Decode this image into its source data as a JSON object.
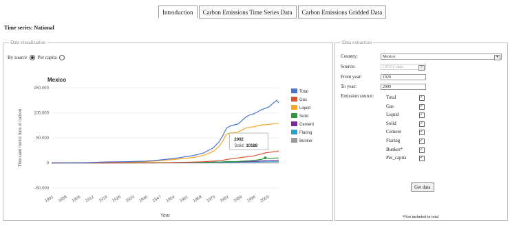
{
  "tabs": [
    {
      "label": "Introduction"
    },
    {
      "label": "Carbon Emissions Time Series Data"
    },
    {
      "label": "Carbon Emissions Gridded Data"
    }
  ],
  "page_title": "Time series: National",
  "viz": {
    "legend": "Data visualization",
    "opt_source": "By source",
    "opt_percapita": "Per capita",
    "tooltip": {
      "year": "2002",
      "label": "Solid:",
      "value": "10188"
    }
  },
  "extraction": {
    "legend": "Data extraction",
    "country_label": "Country:",
    "country_value": "Mexico",
    "source_label": "Source:",
    "source_value": "CDIAC data",
    "from_label": "From year:",
    "from_value": "1929",
    "to_label": "To year:",
    "to_value": "2009",
    "emission_label": "Emission source:",
    "sources": [
      "Total",
      "Gas",
      "Liquid",
      "Solid",
      "Cement",
      "Flaring",
      "Bunker*",
      "Per_capita"
    ],
    "get_data": "Get data",
    "footnote": "*Not included in total"
  },
  "chart_data": {
    "type": "line",
    "title": "Mexico",
    "xlabel": "Year",
    "ylabel": "Thousand metric tons of carbon",
    "xlim": [
      1891,
      2009
    ],
    "ylim": [
      -50000,
      150000
    ],
    "yticks": [
      "150,000",
      "100,000",
      "50,000",
      "0",
      "-50,000"
    ],
    "xticks": [
      "1891",
      "1898",
      "1905",
      "1912",
      "1919",
      "1926",
      "1933",
      "1940",
      "1947",
      "1954",
      "1961",
      "1968",
      "1975",
      "1982",
      "1989",
      "1996",
      "2003"
    ],
    "x": [
      1891,
      1900,
      1910,
      1920,
      1930,
      1940,
      1945,
      1950,
      1955,
      1960,
      1965,
      1970,
      1975,
      1978,
      1980,
      1981,
      1982,
      1984,
      1986,
      1988,
      1990,
      1992,
      1994,
      1996,
      1998,
      2000,
      2002,
      2004,
      2006,
      2008,
      2009
    ],
    "series": [
      {
        "name": "Total",
        "color": "#4a74d0",
        "values": [
          0,
          200,
          700,
          2000,
          2500,
          3500,
          5000,
          7000,
          9000,
          12000,
          15000,
          20000,
          30000,
          42000,
          55000,
          63000,
          70000,
          74000,
          76000,
          78000,
          85000,
          92000,
          96000,
          98000,
          102000,
          106000,
          109000,
          112000,
          119000,
          125000,
          120000
        ]
      },
      {
        "name": "Gas",
        "color": "#d9542c",
        "values": [
          0,
          0,
          0,
          0,
          0,
          0,
          100,
          300,
          700,
          1200,
          1800,
          2500,
          3500,
          4500,
          5500,
          6000,
          7000,
          8000,
          9000,
          10000,
          11000,
          12000,
          13000,
          14000,
          16000,
          18000,
          20000,
          21000,
          22000,
          23000,
          24000
        ]
      },
      {
        "name": "Liquid",
        "color": "#f5a623",
        "values": [
          0,
          100,
          500,
          1600,
          2000,
          2800,
          4000,
          5500,
          7000,
          9000,
          11000,
          15000,
          23000,
          33000,
          44000,
          52000,
          58000,
          60000,
          61000,
          62000,
          66000,
          70000,
          71000,
          72000,
          74000,
          76000,
          76000,
          77000,
          78000,
          79000,
          78000
        ]
      },
      {
        "name": "Solid",
        "color": "#2a9a3c",
        "values": [
          0,
          100,
          200,
          300,
          300,
          400,
          500,
          600,
          700,
          800,
          900,
          1000,
          1500,
          1800,
          2000,
          2200,
          2400,
          2600,
          2800,
          3000,
          3500,
          4000,
          4500,
          5000,
          6000,
          7000,
          10188,
          9000,
          9500,
          10000,
          9500
        ]
      },
      {
        "name": "Cement",
        "color": "#7a2a9a",
        "values": [
          0,
          0,
          0,
          50,
          100,
          150,
          200,
          300,
          400,
          600,
          800,
          1000,
          1500,
          1800,
          2000,
          2100,
          2200,
          2300,
          2400,
          2500,
          2700,
          2900,
          3100,
          3300,
          3600,
          3900,
          4200,
          4500,
          4800,
          5100,
          5200
        ]
      },
      {
        "name": "Flaring",
        "color": "#2aa0c8",
        "values": [
          0,
          0,
          0,
          0,
          0,
          0,
          0,
          100,
          200,
          300,
          400,
          500,
          700,
          900,
          1000,
          1100,
          1200,
          1300,
          1400,
          1500,
          1600,
          1700,
          1800,
          1900,
          2000,
          2100,
          2200,
          2300,
          2400,
          2500,
          2600
        ]
      },
      {
        "name": "Bunker",
        "color": "#9a9a9a",
        "values": [
          0,
          0,
          0,
          0,
          0,
          0,
          0,
          0,
          0,
          0,
          0,
          0,
          0,
          0,
          0,
          0,
          0,
          0,
          0,
          0,
          0,
          0,
          0,
          0,
          0,
          0,
          0,
          0,
          0,
          0,
          0
        ]
      }
    ]
  }
}
